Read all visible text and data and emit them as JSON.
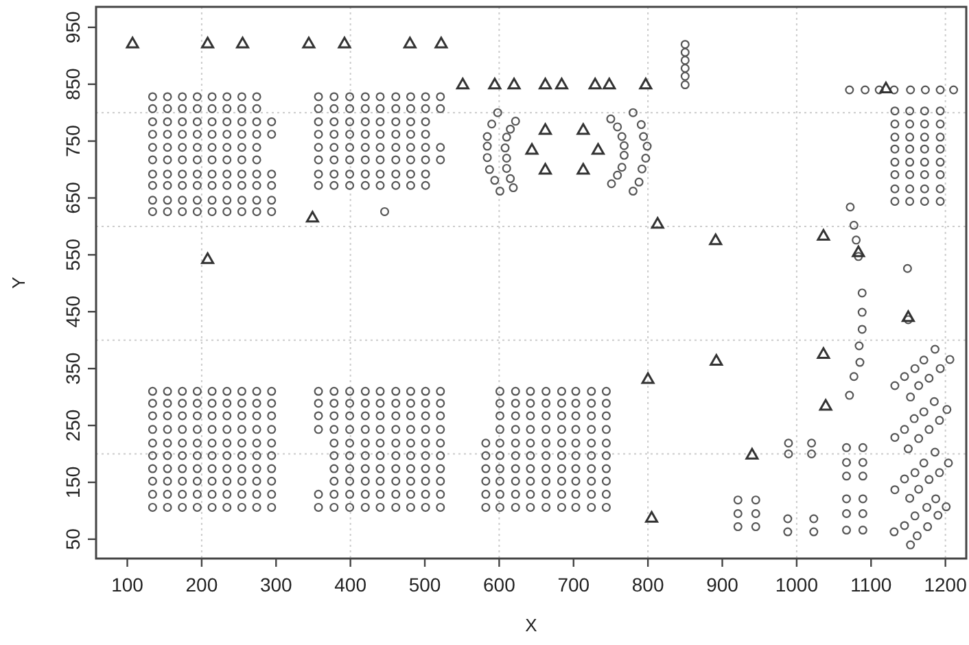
{
  "chart_data": {
    "type": "scatter",
    "xlabel": "X",
    "ylabel": "Y",
    "xlim": [
      58,
      1228
    ],
    "ylim": [
      16,
      986
    ],
    "xticks": [
      100,
      200,
      300,
      400,
      500,
      600,
      700,
      800,
      900,
      1000,
      1100,
      1200
    ],
    "yticks": [
      50,
      150,
      250,
      350,
      450,
      550,
      650,
      750,
      850,
      950
    ],
    "ref_lines": [
      {
        "axis": "x",
        "value": 200,
        "color": "#cccccc",
        "line_style": "dotted"
      },
      {
        "axis": "x",
        "value": 400,
        "color": "#cccccc",
        "line_style": "dotted"
      },
      {
        "axis": "x",
        "value": 600,
        "color": "#cccccc",
        "line_style": "dotted"
      },
      {
        "axis": "x",
        "value": 800,
        "color": "#cccccc",
        "line_style": "dotted"
      },
      {
        "axis": "x",
        "value": 1000,
        "color": "#cccccc",
        "line_style": "dotted"
      },
      {
        "axis": "x",
        "value": 1200,
        "color": "#cccccc",
        "line_style": "dotted"
      },
      {
        "axis": "y",
        "value": 200,
        "color": "#cccccc",
        "line_style": "dotted"
      },
      {
        "axis": "y",
        "value": 400,
        "color": "#cccccc",
        "line_style": "dotted"
      },
      {
        "axis": "y",
        "value": 600,
        "color": "#cccccc",
        "line_style": "dotted"
      },
      {
        "axis": "y",
        "value": 800,
        "color": "#cccccc",
        "line_style": "dotted"
      }
    ],
    "series": [
      {
        "type": "scatter",
        "marker": "circle",
        "color": "#555555",
        "x": [
          134,
          154,
          174,
          194,
          214,
          234,
          254,
          274,
          134,
          154,
          174,
          194,
          214,
          234,
          254,
          274,
          134,
          154,
          174,
          194,
          214,
          234,
          254,
          274,
          294,
          134,
          154,
          174,
          194,
          214,
          234,
          254,
          274,
          294,
          134,
          154,
          174,
          194,
          214,
          234,
          254,
          274,
          134,
          154,
          174,
          194,
          214,
          234,
          254,
          274,
          134,
          154,
          174,
          194,
          214,
          234,
          254,
          274,
          294,
          134,
          154,
          174,
          194,
          214,
          234,
          254,
          274,
          294,
          134,
          154,
          174,
          194,
          214,
          234,
          254,
          274,
          294,
          134,
          154,
          174,
          194,
          214,
          234,
          254,
          274,
          294
        ],
        "values": [
          828,
          828,
          828,
          828,
          828,
          828,
          828,
          828,
          807,
          807,
          807,
          807,
          807,
          807,
          807,
          807,
          784,
          784,
          784,
          784,
          784,
          784,
          784,
          784,
          784,
          762,
          762,
          762,
          762,
          762,
          762,
          762,
          762,
          762,
          739,
          739,
          739,
          739,
          739,
          739,
          739,
          739,
          717,
          717,
          717,
          717,
          717,
          717,
          717,
          717,
          692,
          692,
          692,
          692,
          692,
          692,
          692,
          692,
          692,
          672,
          672,
          672,
          672,
          672,
          672,
          672,
          672,
          672,
          646,
          646,
          646,
          646,
          646,
          646,
          646,
          646,
          646,
          626,
          626,
          626,
          626,
          626,
          626,
          626,
          626,
          626
        ]
      },
      {
        "type": "scatter",
        "marker": "circle",
        "color": "#555555",
        "x": [
          357,
          378,
          399,
          420,
          440,
          461,
          481,
          501,
          521,
          357,
          378,
          399,
          420,
          440,
          461,
          481,
          501,
          521,
          357,
          378,
          399,
          420,
          440,
          461,
          481,
          501,
          357,
          378,
          399,
          420,
          440,
          461,
          481,
          501,
          357,
          378,
          399,
          420,
          440,
          461,
          481,
          501,
          521,
          357,
          378,
          399,
          420,
          440,
          461,
          481,
          501,
          521,
          357,
          378,
          399,
          420,
          440,
          461,
          481,
          501,
          357,
          378,
          399,
          420,
          440,
          461,
          481,
          501,
          446
        ],
        "values": [
          828,
          828,
          828,
          828,
          828,
          828,
          828,
          828,
          828,
          807,
          807,
          807,
          807,
          807,
          807,
          807,
          807,
          807,
          784,
          784,
          784,
          784,
          784,
          784,
          784,
          784,
          762,
          762,
          762,
          762,
          762,
          762,
          762,
          762,
          739,
          739,
          739,
          739,
          739,
          739,
          739,
          739,
          739,
          717,
          717,
          717,
          717,
          717,
          717,
          717,
          717,
          717,
          692,
          692,
          692,
          692,
          692,
          692,
          692,
          692,
          672,
          672,
          672,
          672,
          672,
          672,
          672,
          672,
          626
        ]
      },
      {
        "type": "scatter",
        "marker": "circle",
        "color": "#555555",
        "x": [
          134,
          154,
          174,
          194,
          214,
          234,
          254,
          274,
          294,
          134,
          154,
          174,
          194,
          214,
          234,
          254,
          274,
          294,
          134,
          154,
          174,
          194,
          214,
          234,
          254,
          274,
          294,
          134,
          154,
          174,
          194,
          214,
          234,
          254,
          274,
          294,
          134,
          154,
          174,
          194,
          214,
          234,
          254,
          274,
          294,
          134,
          154,
          174,
          194,
          214,
          234,
          254,
          274,
          294,
          134,
          154,
          174,
          194,
          214,
          234,
          254,
          274,
          294,
          134,
          154,
          174,
          194,
          214,
          234,
          254,
          274,
          294,
          134,
          154,
          174,
          194,
          214,
          234,
          254,
          274,
          294,
          134,
          154,
          174,
          194,
          214,
          234,
          254,
          274,
          294
        ],
        "values": [
          310,
          310,
          310,
          310,
          310,
          310,
          310,
          310,
          310,
          289,
          289,
          289,
          289,
          289,
          289,
          289,
          289,
          289,
          267,
          267,
          267,
          267,
          267,
          267,
          267,
          267,
          267,
          243,
          243,
          243,
          243,
          243,
          243,
          243,
          243,
          243,
          219,
          219,
          219,
          219,
          219,
          219,
          219,
          219,
          219,
          197,
          197,
          197,
          197,
          197,
          197,
          197,
          197,
          197,
          174,
          174,
          174,
          174,
          174,
          174,
          174,
          174,
          174,
          152,
          152,
          152,
          152,
          152,
          152,
          152,
          152,
          152,
          129,
          129,
          129,
          129,
          129,
          129,
          129,
          129,
          129,
          106,
          106,
          106,
          106,
          106,
          106,
          106,
          106,
          106
        ]
      },
      {
        "type": "scatter",
        "marker": "circle",
        "color": "#555555",
        "x": [
          357,
          378,
          399,
          420,
          440,
          461,
          481,
          501,
          521,
          357,
          378,
          399,
          420,
          440,
          461,
          481,
          501,
          521,
          357,
          378,
          399,
          420,
          440,
          461,
          481,
          501,
          521,
          357,
          378,
          399,
          420,
          440,
          461,
          481,
          501,
          521,
          378,
          399,
          420,
          440,
          461,
          481,
          501,
          521,
          378,
          399,
          420,
          440,
          461,
          481,
          501,
          521,
          378,
          399,
          420,
          440,
          461,
          481,
          501,
          521,
          378,
          399,
          420,
          440,
          461,
          481,
          501,
          521,
          357,
          378,
          399,
          420,
          440,
          461,
          481,
          501,
          521,
          357,
          378,
          399,
          420,
          440,
          461,
          481,
          501,
          521
        ],
        "values": [
          310,
          310,
          310,
          310,
          310,
          310,
          310,
          310,
          310,
          289,
          289,
          289,
          289,
          289,
          289,
          289,
          289,
          289,
          267,
          267,
          267,
          267,
          267,
          267,
          267,
          267,
          267,
          243,
          243,
          243,
          243,
          243,
          243,
          243,
          243,
          243,
          219,
          219,
          219,
          219,
          219,
          219,
          219,
          219,
          197,
          197,
          197,
          197,
          197,
          197,
          197,
          197,
          174,
          174,
          174,
          174,
          174,
          174,
          174,
          174,
          152,
          152,
          152,
          152,
          152,
          152,
          152,
          152,
          129,
          129,
          129,
          129,
          129,
          129,
          129,
          129,
          129,
          106,
          106,
          106,
          106,
          106,
          106,
          106,
          106,
          106
        ]
      },
      {
        "type": "scatter",
        "marker": "circle",
        "color": "#555555",
        "x": [
          601,
          622,
          642,
          663,
          684,
          703,
          724,
          744,
          601,
          622,
          642,
          663,
          684,
          703,
          724,
          744,
          601,
          622,
          642,
          663,
          684,
          703,
          724,
          744,
          601,
          622,
          642,
          663,
          684,
          703,
          724,
          744,
          582,
          601,
          622,
          642,
          663,
          684,
          703,
          724,
          744,
          582,
          601,
          622,
          642,
          663,
          684,
          703,
          724,
          744,
          582,
          601,
          622,
          642,
          663,
          684,
          703,
          724,
          744,
          582,
          601,
          622,
          642,
          663,
          684,
          703,
          724,
          744,
          582,
          601,
          622,
          642,
          663,
          684,
          703,
          724,
          744,
          582,
          601,
          622,
          642,
          663,
          684,
          703,
          724,
          744
        ],
        "values": [
          310,
          310,
          310,
          310,
          310,
          310,
          310,
          310,
          289,
          289,
          289,
          289,
          289,
          289,
          289,
          289,
          267,
          267,
          267,
          267,
          267,
          267,
          267,
          267,
          243,
          243,
          243,
          243,
          243,
          243,
          243,
          243,
          219,
          219,
          219,
          219,
          219,
          219,
          219,
          219,
          219,
          197,
          197,
          197,
          197,
          197,
          197,
          197,
          197,
          197,
          174,
          174,
          174,
          174,
          174,
          174,
          174,
          174,
          174,
          152,
          152,
          152,
          152,
          152,
          152,
          152,
          152,
          152,
          129,
          129,
          129,
          129,
          129,
          129,
          129,
          129,
          129,
          106,
          106,
          106,
          106,
          106,
          106,
          106,
          106,
          106
        ]
      },
      {
        "type": "scatter",
        "marker": "circle",
        "color": "#555555",
        "x": [
          598,
          590,
          584,
          584,
          584,
          587,
          594,
          601,
          622,
          615,
          610,
          608,
          610,
          610,
          615,
          619,
          750,
          759,
          765,
          768,
          768,
          765,
          759,
          751,
          780,
          791,
          794,
          799,
          797,
          792,
          788,
          780,
          850,
          850,
          850,
          850,
          850,
          850,
          1071,
          1092,
          1111,
          1131,
          1153,
          1173,
          1193,
          1211,
          1132,
          1152,
          1172,
          1193,
          1132,
          1152,
          1172,
          1193,
          1132,
          1152,
          1172,
          1193,
          1132,
          1152,
          1172,
          1193,
          1132,
          1152,
          1172,
          1193,
          1132,
          1152,
          1172,
          1193,
          1132,
          1152,
          1172,
          1193,
          1132,
          1152,
          1172,
          1193
        ],
        "values": [
          800,
          780,
          758,
          741,
          721,
          700,
          681,
          662,
          785,
          771,
          757,
          738,
          720,
          702,
          684,
          668,
          789,
          775,
          758,
          742,
          725,
          704,
          690,
          675,
          800,
          779,
          758,
          741,
          720,
          701,
          678,
          662,
          920,
          906,
          892,
          878,
          864,
          849,
          840,
          840,
          840,
          840,
          840,
          840,
          840,
          840,
          803,
          803,
          803,
          803,
          780,
          780,
          780,
          780,
          757,
          757,
          757,
          757,
          736,
          736,
          736,
          736,
          713,
          713,
          713,
          713,
          691,
          691,
          691,
          691,
          666,
          666,
          666,
          666,
          644,
          644,
          644,
          644
        ]
      },
      {
        "type": "scatter",
        "marker": "circle",
        "color": "#555555",
        "x": [
          1072,
          1077,
          1080,
          1083,
          1149,
          1088,
          1088,
          1088,
          1084,
          1085,
          1077,
          1071,
          1150,
          921,
          945,
          921,
          945,
          921,
          945,
          989,
          1020,
          989,
          1020,
          988,
          1023,
          988,
          1023,
          1067,
          1089,
          1067,
          1089,
          1067,
          1089,
          1067,
          1089,
          1067,
          1089,
          1067,
          1089
        ],
        "values": [
          634,
          602,
          576,
          547,
          526,
          483,
          449,
          419,
          390,
          361,
          336,
          303,
          436,
          119,
          119,
          95,
          95,
          72,
          72,
          219,
          219,
          200,
          200,
          86,
          86,
          63,
          63,
          211,
          211,
          185,
          185,
          161,
          161,
          121,
          121,
          95,
          95,
          66,
          66
        ]
      },
      {
        "type": "scatter",
        "marker": "circle",
        "color": "#555555",
        "x": [
          1132,
          1145,
          1159,
          1171,
          1186,
          1206,
          1193,
          1178,
          1164,
          1153,
          1132,
          1145,
          1158,
          1171,
          1185,
          1202,
          1192,
          1178,
          1164,
          1150,
          1132,
          1145,
          1159,
          1171,
          1186,
          1204,
          1192,
          1178,
          1164,
          1152,
          1131,
          1145,
          1159,
          1175,
          1187,
          1201,
          1190,
          1176,
          1162,
          1153
        ],
        "values": [
          320,
          336,
          350,
          365,
          384,
          366,
          350,
          333,
          320,
          300,
          229,
          243,
          262,
          274,
          292,
          278,
          259,
          243,
          227,
          209,
          137,
          156,
          167,
          184,
          203,
          184,
          167,
          155,
          138,
          122,
          63,
          74,
          91,
          106,
          121,
          107,
          92,
          72,
          56,
          40
        ]
      },
      {
        "type": "scatter",
        "marker": "triangle",
        "color": "#333333",
        "x": [
          107,
          208,
          255,
          344,
          392,
          480,
          522,
          551,
          594,
          620,
          662,
          684,
          729,
          748,
          797,
          349,
          208,
          662,
          713,
          644,
          733,
          662,
          713,
          813,
          891,
          1036,
          1083,
          1150,
          800,
          892,
          1036,
          1039,
          940,
          805,
          1120
        ],
        "values": [
          922,
          922,
          922,
          922,
          922,
          922,
          922,
          850,
          850,
          850,
          850,
          850,
          850,
          850,
          850,
          616,
          543,
          770,
          770,
          735,
          735,
          700,
          700,
          605,
          576,
          584,
          555,
          441,
          332,
          364,
          376,
          285,
          199,
          88,
          843
        ]
      }
    ]
  }
}
